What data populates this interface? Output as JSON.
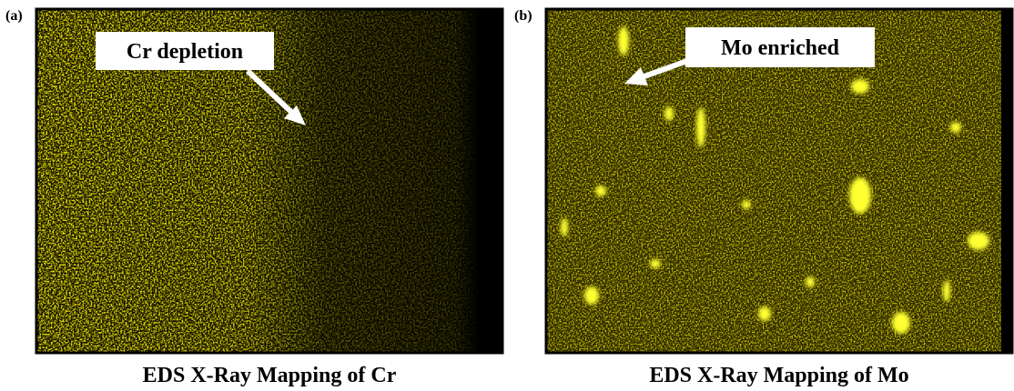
{
  "panels": [
    {
      "label": "(a)",
      "annotation": "Cr depletion",
      "caption": "EDS X-Ray Mapping of Cr"
    },
    {
      "label": "(b)",
      "annotation": "Mo enriched",
      "caption": "EDS X-Ray Mapping of Mo"
    }
  ]
}
